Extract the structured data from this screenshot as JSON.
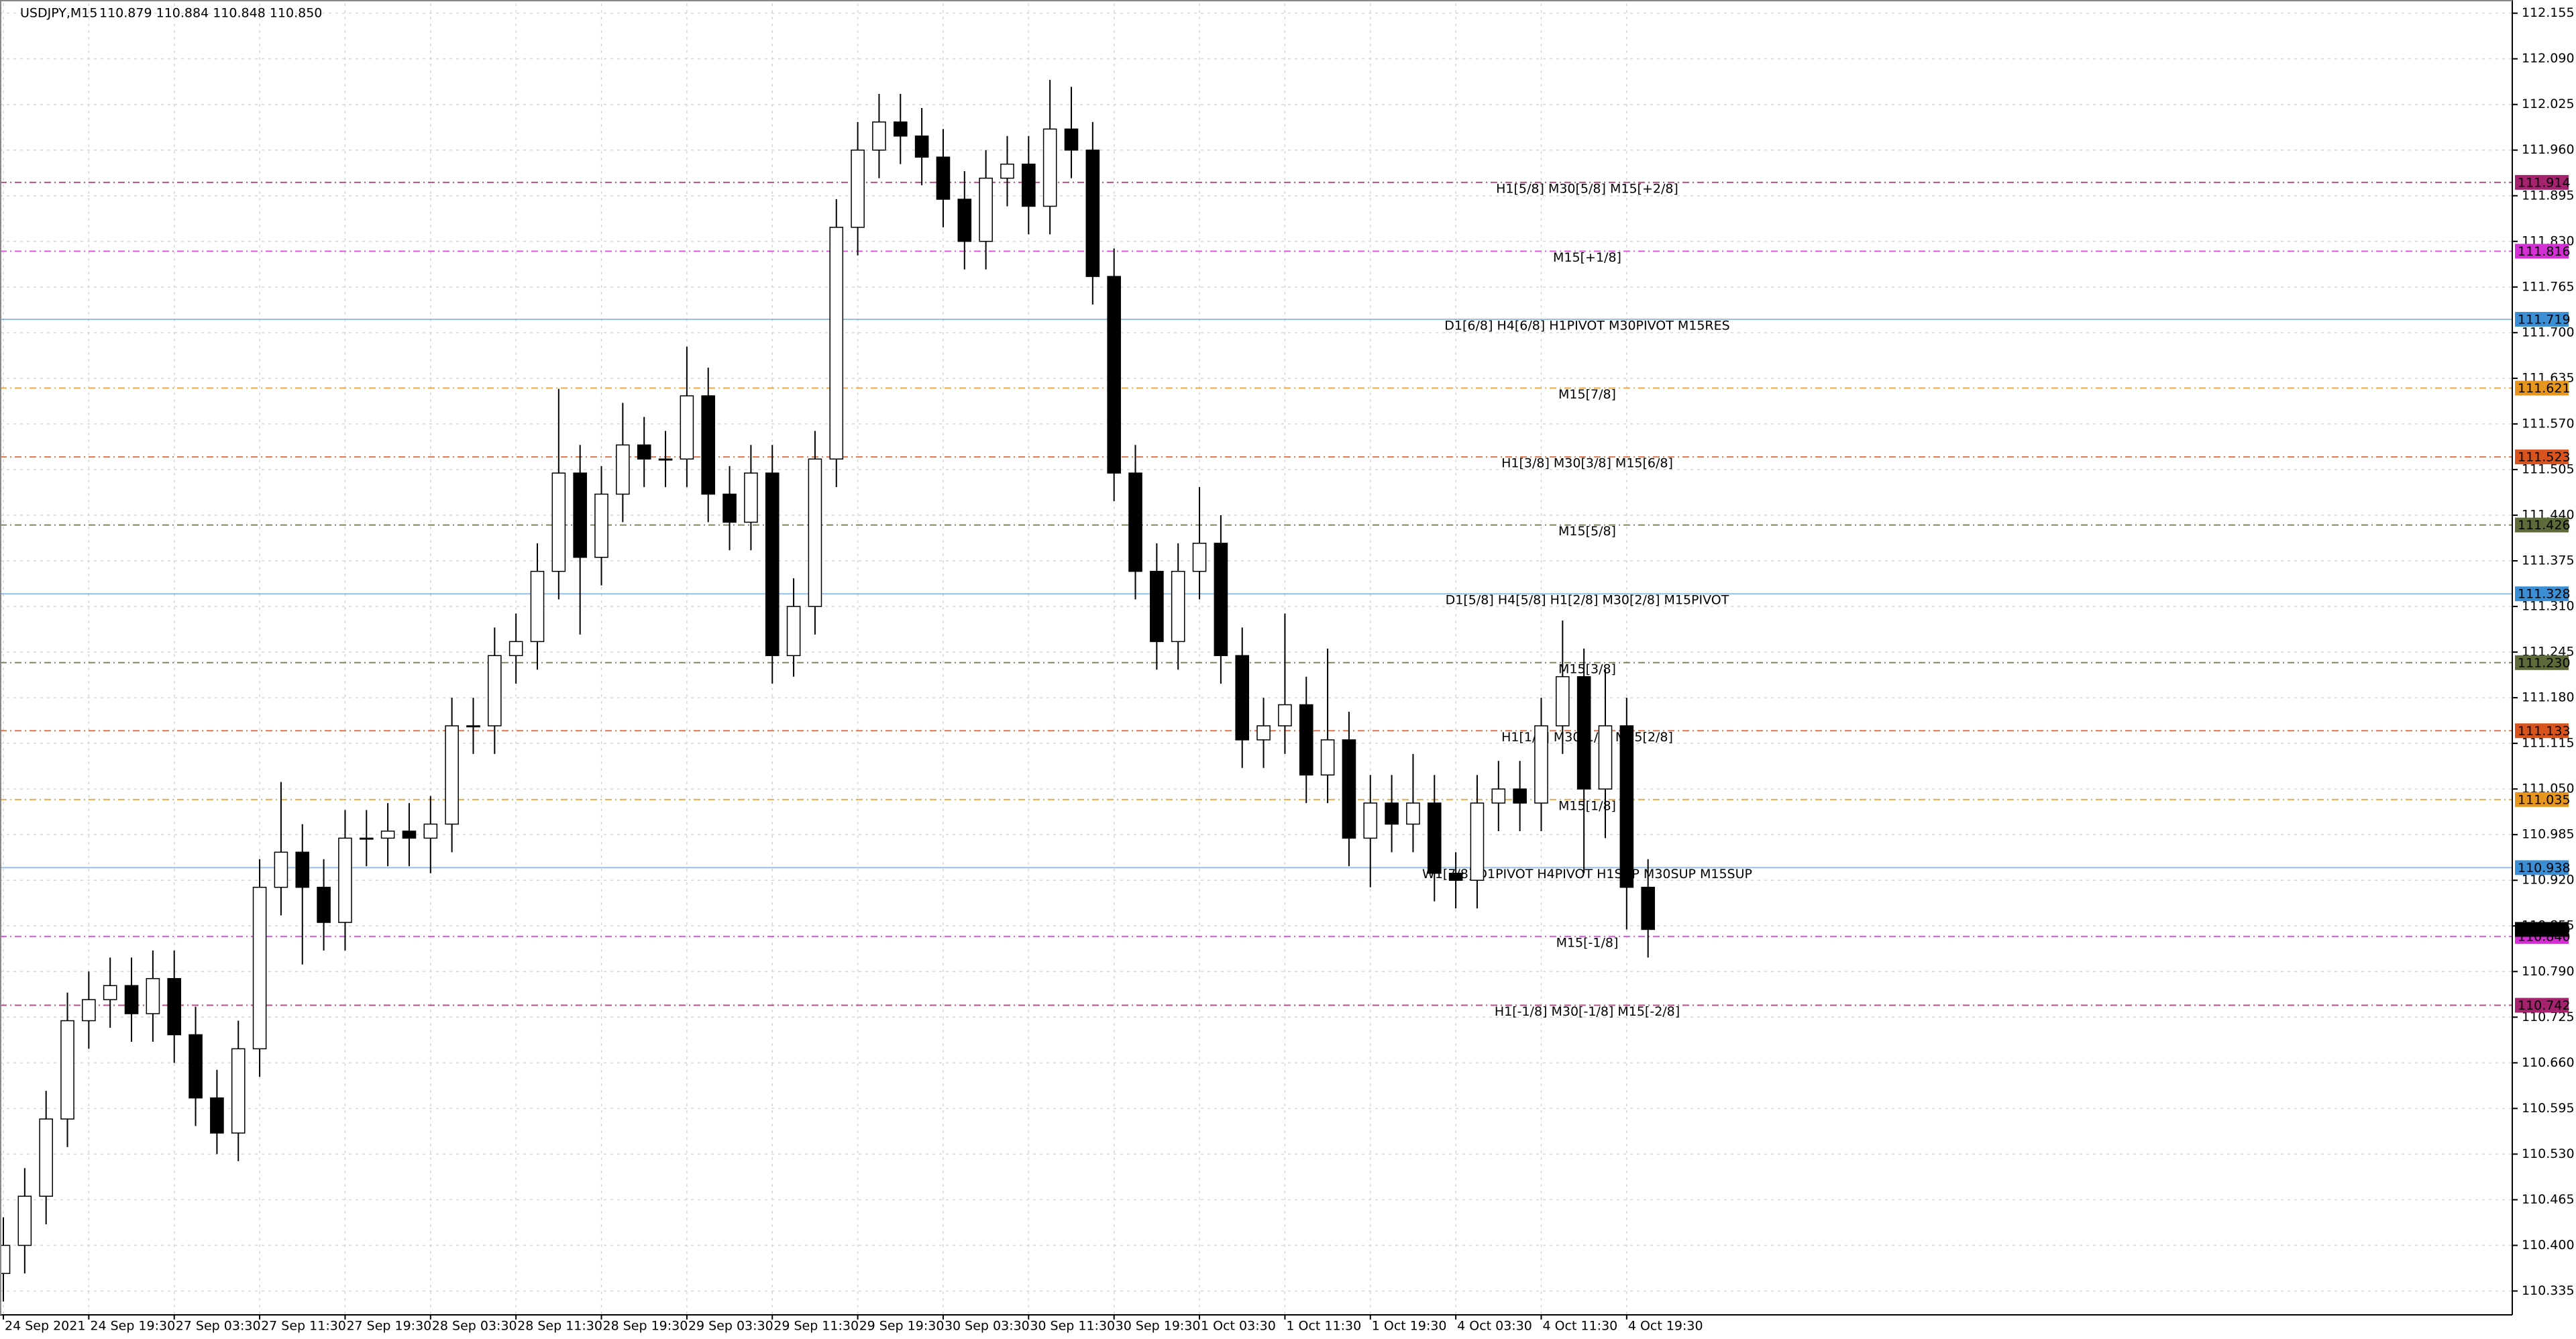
{
  "chart_data": {
    "type": "candlestick",
    "title": "USDJPY,M15",
    "quote": "110.879 110.884 110.848 110.850",
    "categories": [
      "24 Sep 2021",
      null,
      null,
      null,
      "24 Sep 19:30",
      null,
      null,
      null,
      "27 Sep 03:30",
      null,
      null,
      null,
      "27 Sep 11:30",
      null,
      null,
      null,
      "27 Sep 19:30",
      null,
      null,
      null,
      "28 Sep 03:30",
      null,
      null,
      null,
      "28 Sep 11:30",
      null,
      null,
      null,
      "28 Sep 19:30",
      null,
      null,
      null,
      "29 Sep 03:30",
      null,
      null,
      null,
      "29 Sep 11:30",
      null,
      null,
      null,
      "29 Sep 19:30",
      null,
      null,
      null,
      "30 Sep 03:30",
      null,
      null,
      null,
      "30 Sep 11:30",
      null,
      null,
      null,
      "30 Sep 19:30",
      null,
      null,
      null,
      "1 Oct 03:30",
      null,
      null,
      null,
      "1 Oct 11:30",
      null,
      null,
      null,
      "1 Oct 19:30",
      null,
      null,
      null,
      "4 Oct 03:30",
      null,
      null,
      null,
      "4 Oct 11:30",
      null,
      null,
      null,
      "4 Oct 19:30",
      null
    ],
    "open": [
      110.36,
      110.4,
      110.47,
      110.58,
      110.72,
      110.75,
      110.77,
      110.73,
      110.78,
      110.7,
      110.61,
      110.56,
      110.68,
      110.91,
      110.96,
      110.91,
      110.86,
      110.98,
      110.98,
      110.99,
      110.98,
      111.0,
      111.14,
      111.14,
      111.24,
      111.26,
      111.36,
      111.5,
      111.38,
      111.47,
      111.54,
      111.52,
      111.52,
      111.61,
      111.47,
      111.43,
      111.5,
      111.24,
      111.31,
      111.52,
      111.85,
      111.96,
      112.0,
      111.98,
      111.95,
      111.89,
      111.83,
      111.92,
      111.94,
      111.88,
      111.99,
      111.96,
      111.78,
      111.5,
      111.36,
      111.26,
      111.36,
      111.4,
      111.24,
      111.12,
      111.14,
      111.17,
      111.07,
      111.12,
      110.98,
      111.03,
      111.0,
      111.03,
      110.93,
      110.92,
      111.03,
      111.05,
      111.03,
      111.14,
      111.21,
      111.05,
      111.14,
      110.91
    ],
    "high": [
      110.44,
      110.51,
      110.62,
      110.76,
      110.79,
      110.81,
      110.81,
      110.82,
      110.82,
      110.74,
      110.65,
      110.72,
      110.95,
      111.06,
      111.0,
      110.95,
      111.02,
      111.02,
      111.03,
      111.03,
      111.04,
      111.18,
      111.18,
      111.28,
      111.3,
      111.4,
      111.62,
      111.54,
      111.51,
      111.6,
      111.58,
      111.56,
      111.68,
      111.65,
      111.51,
      111.54,
      111.54,
      111.35,
      111.56,
      111.89,
      112.0,
      112.04,
      112.04,
      112.02,
      111.99,
      111.93,
      111.96,
      111.98,
      111.98,
      112.06,
      112.05,
      112.0,
      111.82,
      111.54,
      111.4,
      111.4,
      111.48,
      111.44,
      111.28,
      111.18,
      111.3,
      111.21,
      111.25,
      111.16,
      111.07,
      111.07,
      111.1,
      111.07,
      110.96,
      111.07,
      111.09,
      111.09,
      111.18,
      111.29,
      111.25,
      111.22,
      111.18,
      110.95
    ],
    "low": [
      110.32,
      110.36,
      110.43,
      110.54,
      110.68,
      110.71,
      110.69,
      110.69,
      110.66,
      110.57,
      110.53,
      110.52,
      110.64,
      110.87,
      110.8,
      110.82,
      110.82,
      110.94,
      110.94,
      110.94,
      110.93,
      110.96,
      111.1,
      111.1,
      111.2,
      111.22,
      111.32,
      111.27,
      111.34,
      111.43,
      111.48,
      111.48,
      111.48,
      111.43,
      111.39,
      111.39,
      111.2,
      111.21,
      111.27,
      111.48,
      111.81,
      111.92,
      111.94,
      111.91,
      111.85,
      111.79,
      111.79,
      111.88,
      111.84,
      111.84,
      111.92,
      111.74,
      111.46,
      111.32,
      111.22,
      111.22,
      111.32,
      111.2,
      111.08,
      111.08,
      111.1,
      111.03,
      111.03,
      110.94,
      110.91,
      110.96,
      110.96,
      110.89,
      110.88,
      110.88,
      110.99,
      110.99,
      110.99,
      111.1,
      110.93,
      110.98,
      110.85,
      110.81
    ],
    "close": [
      110.4,
      110.47,
      110.58,
      110.72,
      110.75,
      110.77,
      110.73,
      110.78,
      110.7,
      110.61,
      110.56,
      110.68,
      110.91,
      110.96,
      110.91,
      110.86,
      110.98,
      110.98,
      110.99,
      110.98,
      111.0,
      111.14,
      111.14,
      111.24,
      111.26,
      111.36,
      111.5,
      111.38,
      111.47,
      111.54,
      111.52,
      111.52,
      111.61,
      111.47,
      111.43,
      111.5,
      111.24,
      111.31,
      111.52,
      111.85,
      111.96,
      112.0,
      111.98,
      111.95,
      111.89,
      111.83,
      111.92,
      111.94,
      111.88,
      111.99,
      111.96,
      111.78,
      111.5,
      111.36,
      111.26,
      111.36,
      111.4,
      111.24,
      111.12,
      111.14,
      111.17,
      111.07,
      111.12,
      110.98,
      111.03,
      111.0,
      111.03,
      110.93,
      110.92,
      111.03,
      111.05,
      111.03,
      111.14,
      111.21,
      111.05,
      111.14,
      110.91,
      110.85
    ],
    "up_color": "#ffffff",
    "down_color": "#000000",
    "ylim": [
      110.302,
      112.169
    ],
    "yticks": [
      112.155,
      {
        "value": 112.09,
        "label": "112.090"
      },
      112.025,
      {
        "value": 111.96,
        "label": "111.960"
      },
      111.895,
      {
        "value": 111.83,
        "label": "111.830"
      },
      111.765,
      {
        "value": 111.7,
        "label": "111.700"
      },
      111.635,
      {
        "value": 111.57,
        "label": "111.570"
      },
      111.505,
      {
        "value": 111.44,
        "label": "111.440"
      },
      111.375,
      {
        "value": 111.31,
        "label": "111.310"
      },
      111.245,
      {
        "value": 111.18,
        "label": "111.180"
      },
      111.115,
      {
        "value": 111.05,
        "label": "111.050"
      },
      110.985,
      {
        "value": 110.92,
        "label": "110.920"
      },
      110.855,
      {
        "value": 110.79,
        "label": "110.790"
      },
      110.725,
      {
        "value": 110.66,
        "label": "110.660"
      },
      110.595,
      {
        "value": 110.53,
        "label": "110.530"
      },
      110.465,
      {
        "value": 110.4,
        "label": "110.400"
      },
      110.335
    ],
    "grid": true,
    "levels": [
      {
        "value": 111.914,
        "name": "H1[5/8] M30[5/8] M15[+2/8]",
        "color": "#a5226f",
        "style": "dashdot"
      },
      {
        "value": 111.816,
        "name": "M15[+1/8]",
        "color": "#d42fd4",
        "style": "dashdot"
      },
      {
        "value": 111.719,
        "name": "D1[6/8] H4[6/8] H1PIVOT M30PIVOT M15RES",
        "color": "#3b8ed4",
        "style": "solid"
      },
      {
        "value": 111.621,
        "name": "M15[7/8]",
        "color": "#e6961e",
        "style": "dashdot"
      },
      {
        "value": 111.523,
        "name": "H1[3/8] M30[3/8] M15[6/8]",
        "color": "#d9531e",
        "style": "dashdot"
      },
      {
        "value": 111.426,
        "name": "M15[5/8]",
        "color": "#5d6b3a",
        "style": "dashdot"
      },
      {
        "value": 111.328,
        "name": "D1[5/8] H4[5/8] H1[2/8] M30[2/8] M15PIVOT",
        "color": "#3b8ed4",
        "style": "solid"
      },
      {
        "value": 111.23,
        "value_label": "111.230",
        "name": "M15[3/8]",
        "color": "#5d6b3a",
        "style": "dashdot"
      },
      {
        "value": 111.133,
        "name": "H1[1/8] M30[1/8] M15[2/8]",
        "color": "#d9531e",
        "style": "dashdot"
      },
      {
        "value": 111.035,
        "name": "M15[1/8]",
        "color": "#e6961e",
        "style": "dashdot"
      },
      {
        "value": 110.938,
        "name": "W1[7/8] D1PIVOT H4PIVOT H1SUP M30SUP M15SUP",
        "color": "#3b8ed4",
        "style": "solid"
      },
      {
        "value": 110.84,
        "value_label": "110.840",
        "name": "M15[-1/8]",
        "color": "#d42fd4",
        "style": "dashdot"
      },
      {
        "value": 110.742,
        "name": "H1[-1/8] M30[-1/8] M15[-2/8]",
        "color": "#a5226f",
        "style": "dashdot"
      }
    ],
    "last_price": {
      "value": 110.85,
      "label": "110.850",
      "color": "#000000"
    }
  }
}
